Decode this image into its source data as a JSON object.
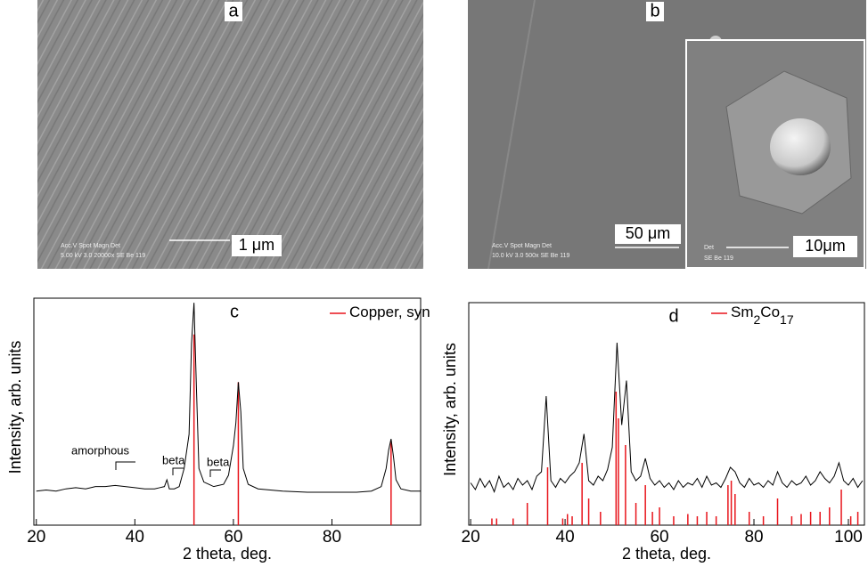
{
  "panels": [
    {
      "label": "a",
      "info": [
        "Acc.V  Spot Magn   Det",
        "5.00 kV 3.0  20000x  SE   Be 119"
      ],
      "scale_bar": "1 μm"
    },
    {
      "label": "b",
      "info": [
        "Acc.V  Spot Magn   Det",
        "10.0 kV 3.0  500x    SE   Be 119"
      ],
      "scale_bar": "50 μm",
      "inset": {
        "info": [
          "Det",
          "SE  Be 119"
        ],
        "scale_bar": "10μm"
      }
    }
  ],
  "chart_data": [
    {
      "type": "line",
      "title": "c",
      "x_label": "2 theta, deg.",
      "y_label": "Intensity, arb. units",
      "xlim": [
        19.5,
        98
      ],
      "xticks": [
        20,
        40,
        60,
        80
      ],
      "ylim": [
        0,
        100
      ],
      "series": [
        {
          "color": "#000000",
          "x": [
            20,
            22,
            24,
            26,
            28,
            30,
            32,
            34,
            36,
            38,
            40,
            42,
            44,
            45,
            46,
            46.5,
            47,
            48,
            49,
            50,
            51,
            51.5,
            52,
            52.5,
            53,
            54,
            55,
            56,
            58,
            59,
            60,
            60.5,
            61,
            61.5,
            62,
            63,
            65,
            70,
            75,
            80,
            85,
            88,
            90,
            91,
            91.5,
            92,
            92.5,
            93,
            94,
            96,
            98
          ],
          "values": [
            15,
            15.5,
            15,
            16,
            16.5,
            16,
            17,
            17,
            17.5,
            17,
            16.5,
            16,
            16,
            16.5,
            17,
            20,
            16,
            16,
            17,
            25,
            40,
            80,
            98,
            60,
            25,
            19,
            18,
            17,
            18,
            22,
            35,
            45,
            63,
            50,
            25,
            18,
            16,
            15,
            14.5,
            14.5,
            14.5,
            15,
            17,
            25,
            33,
            38,
            30,
            20,
            16,
            15,
            15
          ]
        }
      ],
      "reference": {
        "name": "Copper, syn",
        "color": "#e8141b",
        "x": [
          52,
          61,
          92
        ],
        "values": [
          84,
          63,
          37
        ]
      },
      "annotations": [
        "amorphous",
        "beta",
        "beta"
      ]
    },
    {
      "type": "line",
      "title": "d",
      "x_label": "2 theta, deg.",
      "y_label": "Intensity, arb. units",
      "xlim": [
        19.6,
        103.4
      ],
      "xticks": [
        20,
        40,
        60,
        80,
        100
      ],
      "ylim": [
        0,
        100
      ],
      "series": [
        {
          "color": "#000000",
          "x": [
            20,
            21,
            22,
            23,
            24,
            25,
            26,
            27,
            28,
            29,
            30,
            31,
            32,
            33,
            34,
            35,
            36,
            37,
            38,
            39,
            40,
            41,
            42,
            43,
            44,
            45,
            46,
            47,
            48,
            49,
            50,
            51,
            52,
            53,
            54,
            55,
            56,
            57,
            58,
            59,
            60,
            61,
            62,
            63,
            64,
            65,
            66,
            67,
            68,
            69,
            70,
            71,
            72,
            73,
            74,
            75,
            76,
            77,
            78,
            79,
            80,
            81,
            82,
            83,
            84,
            85,
            86,
            87,
            88,
            89,
            90,
            91,
            92,
            93,
            94,
            95,
            96,
            97,
            98,
            99,
            100,
            101,
            102,
            103
          ],
          "values": [
            19,
            16,
            21,
            17,
            20,
            15,
            22,
            17,
            19,
            16,
            21,
            18,
            20,
            16,
            22,
            24,
            58,
            20,
            17,
            21,
            19,
            22,
            24,
            28,
            41,
            20,
            18,
            22,
            20,
            25,
            35,
            82,
            45,
            65,
            24,
            20,
            22,
            30,
            21,
            18,
            20,
            17,
            19,
            16,
            20,
            17,
            19,
            18,
            21,
            17,
            22,
            18,
            19,
            17,
            21,
            26,
            24,
            19,
            17,
            21,
            18,
            19,
            17,
            20,
            18,
            24,
            19,
            17,
            20,
            18,
            19,
            22,
            18,
            20,
            24,
            21,
            19,
            22,
            28,
            20,
            18,
            21,
            17,
            20
          ]
        }
      ],
      "reference": {
        "name": "Sm2Co17",
        "color": "#e8141b",
        "x": [
          24.5,
          25.5,
          29,
          32,
          36.3,
          39.5,
          40.5,
          41.5,
          43.6,
          45,
          47.5,
          50.8,
          51.3,
          52.8,
          55,
          57,
          58.5,
          60,
          63,
          66,
          68,
          70,
          72,
          74.5,
          75.2,
          76,
          79,
          82,
          85,
          88,
          90,
          92,
          94,
          96,
          98.5,
          100.5,
          102
        ],
        "values": [
          3,
          3,
          3,
          10,
          26,
          3,
          5,
          4,
          28,
          12,
          6,
          60,
          48,
          36,
          10,
          18,
          6,
          8,
          4,
          5,
          4,
          6,
          4,
          18,
          20,
          14,
          6,
          4,
          12,
          4,
          5,
          6,
          6,
          8,
          16,
          4,
          6
        ]
      }
    }
  ]
}
